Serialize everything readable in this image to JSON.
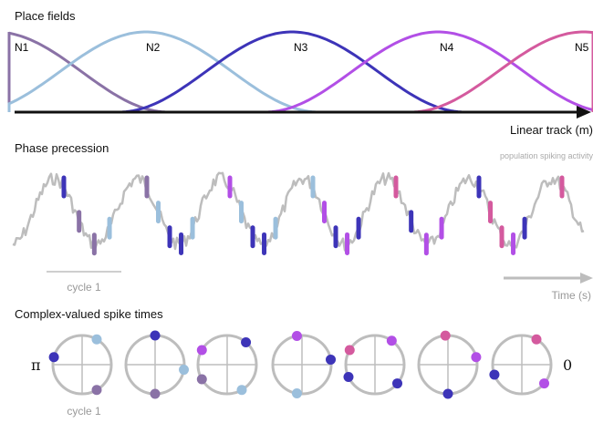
{
  "sections": {
    "place_fields": "Place fields",
    "phase_precession": "Phase precession",
    "complex_spikes": "Complex-valued spike times"
  },
  "axes": {
    "track": "Linear track (m)",
    "time": "Time (s)"
  },
  "labels": {
    "population": "population spiking activity",
    "cycle_top": "cycle 1",
    "cycle_bottom": "cycle 1",
    "pi": "π",
    "zero": "0"
  },
  "neurons": [
    {
      "name": "N1",
      "color": "#8a72a6"
    },
    {
      "name": "N2",
      "color": "#9bbfdc"
    },
    {
      "name": "N3",
      "color": "#3d34b8"
    },
    {
      "name": "N4",
      "color": "#b24fe6"
    },
    {
      "name": "N5",
      "color": "#d45a9e"
    }
  ],
  "colors": {
    "activity": "#bdbdbd",
    "axis": "#111111",
    "circle": "#bdbdbd"
  },
  "phase_spikes": [
    {
      "cycle": 1,
      "neurons": [
        3,
        1,
        1,
        2
      ]
    },
    {
      "cycle": 2,
      "neurons": [
        1,
        2,
        3,
        3,
        2
      ]
    },
    {
      "cycle": 3,
      "neurons": [
        4,
        2,
        3,
        3,
        2
      ]
    },
    {
      "cycle": 4,
      "neurons": [
        2,
        4,
        3,
        4,
        3
      ]
    },
    {
      "cycle": 5,
      "neurons": [
        5,
        3,
        4,
        4
      ]
    },
    {
      "cycle": 6,
      "neurons": [
        3,
        5,
        5,
        4,
        3
      ]
    },
    {
      "cycle": 7,
      "neurons": [
        5,
        4
      ]
    }
  ],
  "circle_spikes": [
    [
      {
        "n": 3,
        "deg": 165
      },
      {
        "n": 2,
        "deg": 60
      },
      {
        "n": 1,
        "deg": 300
      }
    ],
    [
      {
        "n": 3,
        "deg": 90
      },
      {
        "n": 1,
        "deg": 270
      },
      {
        "n": 2,
        "deg": 350
      }
    ],
    [
      {
        "n": 4,
        "deg": 150
      },
      {
        "n": 1,
        "deg": 210
      },
      {
        "n": 3,
        "deg": 50
      },
      {
        "n": 2,
        "deg": 300
      }
    ],
    [
      {
        "n": 4,
        "deg": 100
      },
      {
        "n": 2,
        "deg": 260
      },
      {
        "n": 3,
        "deg": 10
      }
    ],
    [
      {
        "n": 5,
        "deg": 150
      },
      {
        "n": 3,
        "deg": 205
      },
      {
        "n": 4,
        "deg": 55
      },
      {
        "n": 3,
        "deg": 320
      }
    ],
    [
      {
        "n": 5,
        "deg": 95
      },
      {
        "n": 3,
        "deg": 270
      },
      {
        "n": 4,
        "deg": 15
      }
    ],
    [
      {
        "n": 3,
        "deg": 200
      },
      {
        "n": 5,
        "deg": 60
      },
      {
        "n": 4,
        "deg": 320
      }
    ]
  ]
}
